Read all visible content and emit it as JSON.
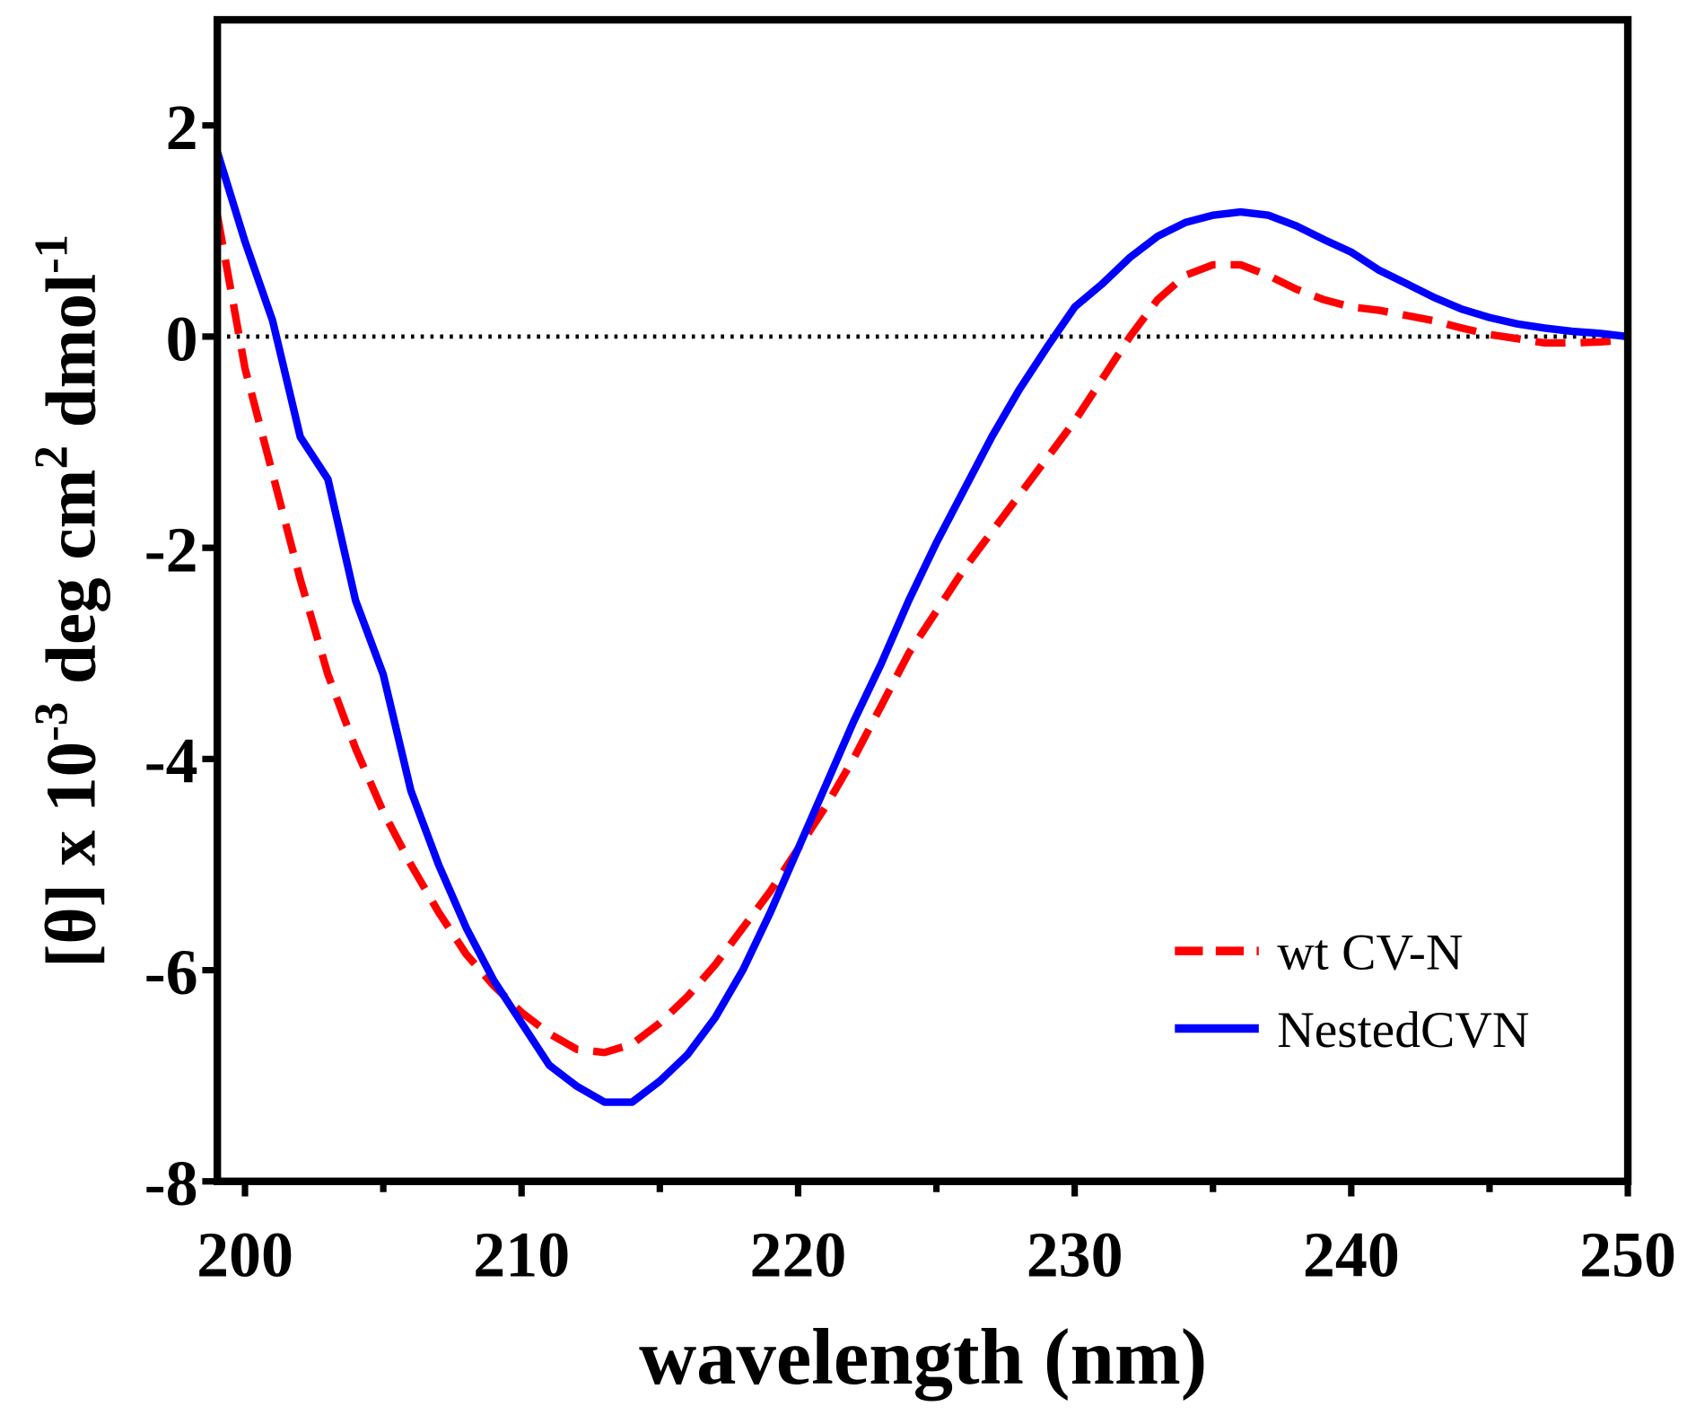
{
  "chart_data": {
    "type": "line",
    "title": "",
    "xlabel": "wavelength (nm)",
    "ylabel_parts": {
      "a": "[θ] x 10",
      "b": "-3",
      "c": " deg cm",
      "d": "2",
      "e": " dmol",
      "f": "-1"
    },
    "ylabel": "[θ] x 10^-3 deg cm^2 dmol^-1",
    "xlim": [
      199,
      250
    ],
    "ylim": [
      -8,
      3
    ],
    "xticks": [
      200,
      210,
      220,
      230,
      240,
      250
    ],
    "xticks_minor": [
      205,
      215,
      225,
      235,
      245
    ],
    "yticks": [
      2,
      0,
      -2,
      -4,
      -6,
      -8
    ],
    "xtick_labels": [
      "200",
      "210",
      "220",
      "230",
      "240",
      "250"
    ],
    "ytick_labels": [
      "2",
      "0",
      "-2",
      "-4",
      "-6",
      "-8"
    ],
    "reference_line": {
      "y": 0,
      "style": "dotted"
    },
    "legend_position": "bottom-right",
    "x": [
      199,
      200,
      201,
      202,
      203,
      204,
      205,
      206,
      207,
      208,
      209,
      210,
      211,
      212,
      213,
      214,
      215,
      216,
      217,
      218,
      219,
      220,
      221,
      222,
      223,
      224,
      225,
      226,
      227,
      228,
      229,
      230,
      231,
      232,
      233,
      234,
      235,
      236,
      237,
      238,
      239,
      240,
      241,
      242,
      243,
      244,
      245,
      246,
      247,
      248,
      249,
      250
    ],
    "series": [
      {
        "name": "wt CV-N",
        "color": "#ff0000",
        "style": "dashed",
        "values": [
          1.15,
          -0.3,
          -1.3,
          -2.3,
          -3.2,
          -3.9,
          -4.5,
          -5.0,
          -5.45,
          -5.85,
          -6.15,
          -6.4,
          -6.6,
          -6.75,
          -6.78,
          -6.7,
          -6.5,
          -6.25,
          -5.95,
          -5.6,
          -5.25,
          -4.85,
          -4.45,
          -4.0,
          -3.5,
          -3.0,
          -2.6,
          -2.2,
          -1.85,
          -1.5,
          -1.15,
          -0.8,
          -0.4,
          0.0,
          0.35,
          0.58,
          0.68,
          0.68,
          0.58,
          0.45,
          0.35,
          0.28,
          0.25,
          0.2,
          0.15,
          0.08,
          0.02,
          -0.02,
          -0.06,
          -0.06,
          -0.05,
          -0.03
        ]
      },
      {
        "name": "NestedCVN",
        "color": "#0000ff",
        "style": "solid",
        "values": [
          1.75,
          0.9,
          0.15,
          -0.95,
          -1.35,
          -2.5,
          -3.2,
          -4.3,
          -5.0,
          -5.6,
          -6.1,
          -6.5,
          -6.9,
          -7.1,
          -7.25,
          -7.25,
          -7.05,
          -6.8,
          -6.45,
          -6.0,
          -5.45,
          -4.85,
          -4.25,
          -3.65,
          -3.1,
          -2.5,
          -1.95,
          -1.45,
          -0.95,
          -0.5,
          -0.1,
          0.28,
          0.5,
          0.75,
          0.95,
          1.08,
          1.15,
          1.18,
          1.15,
          1.05,
          0.92,
          0.8,
          0.63,
          0.5,
          0.37,
          0.26,
          0.18,
          0.12,
          0.08,
          0.05,
          0.03,
          0.0
        ]
      }
    ]
  }
}
